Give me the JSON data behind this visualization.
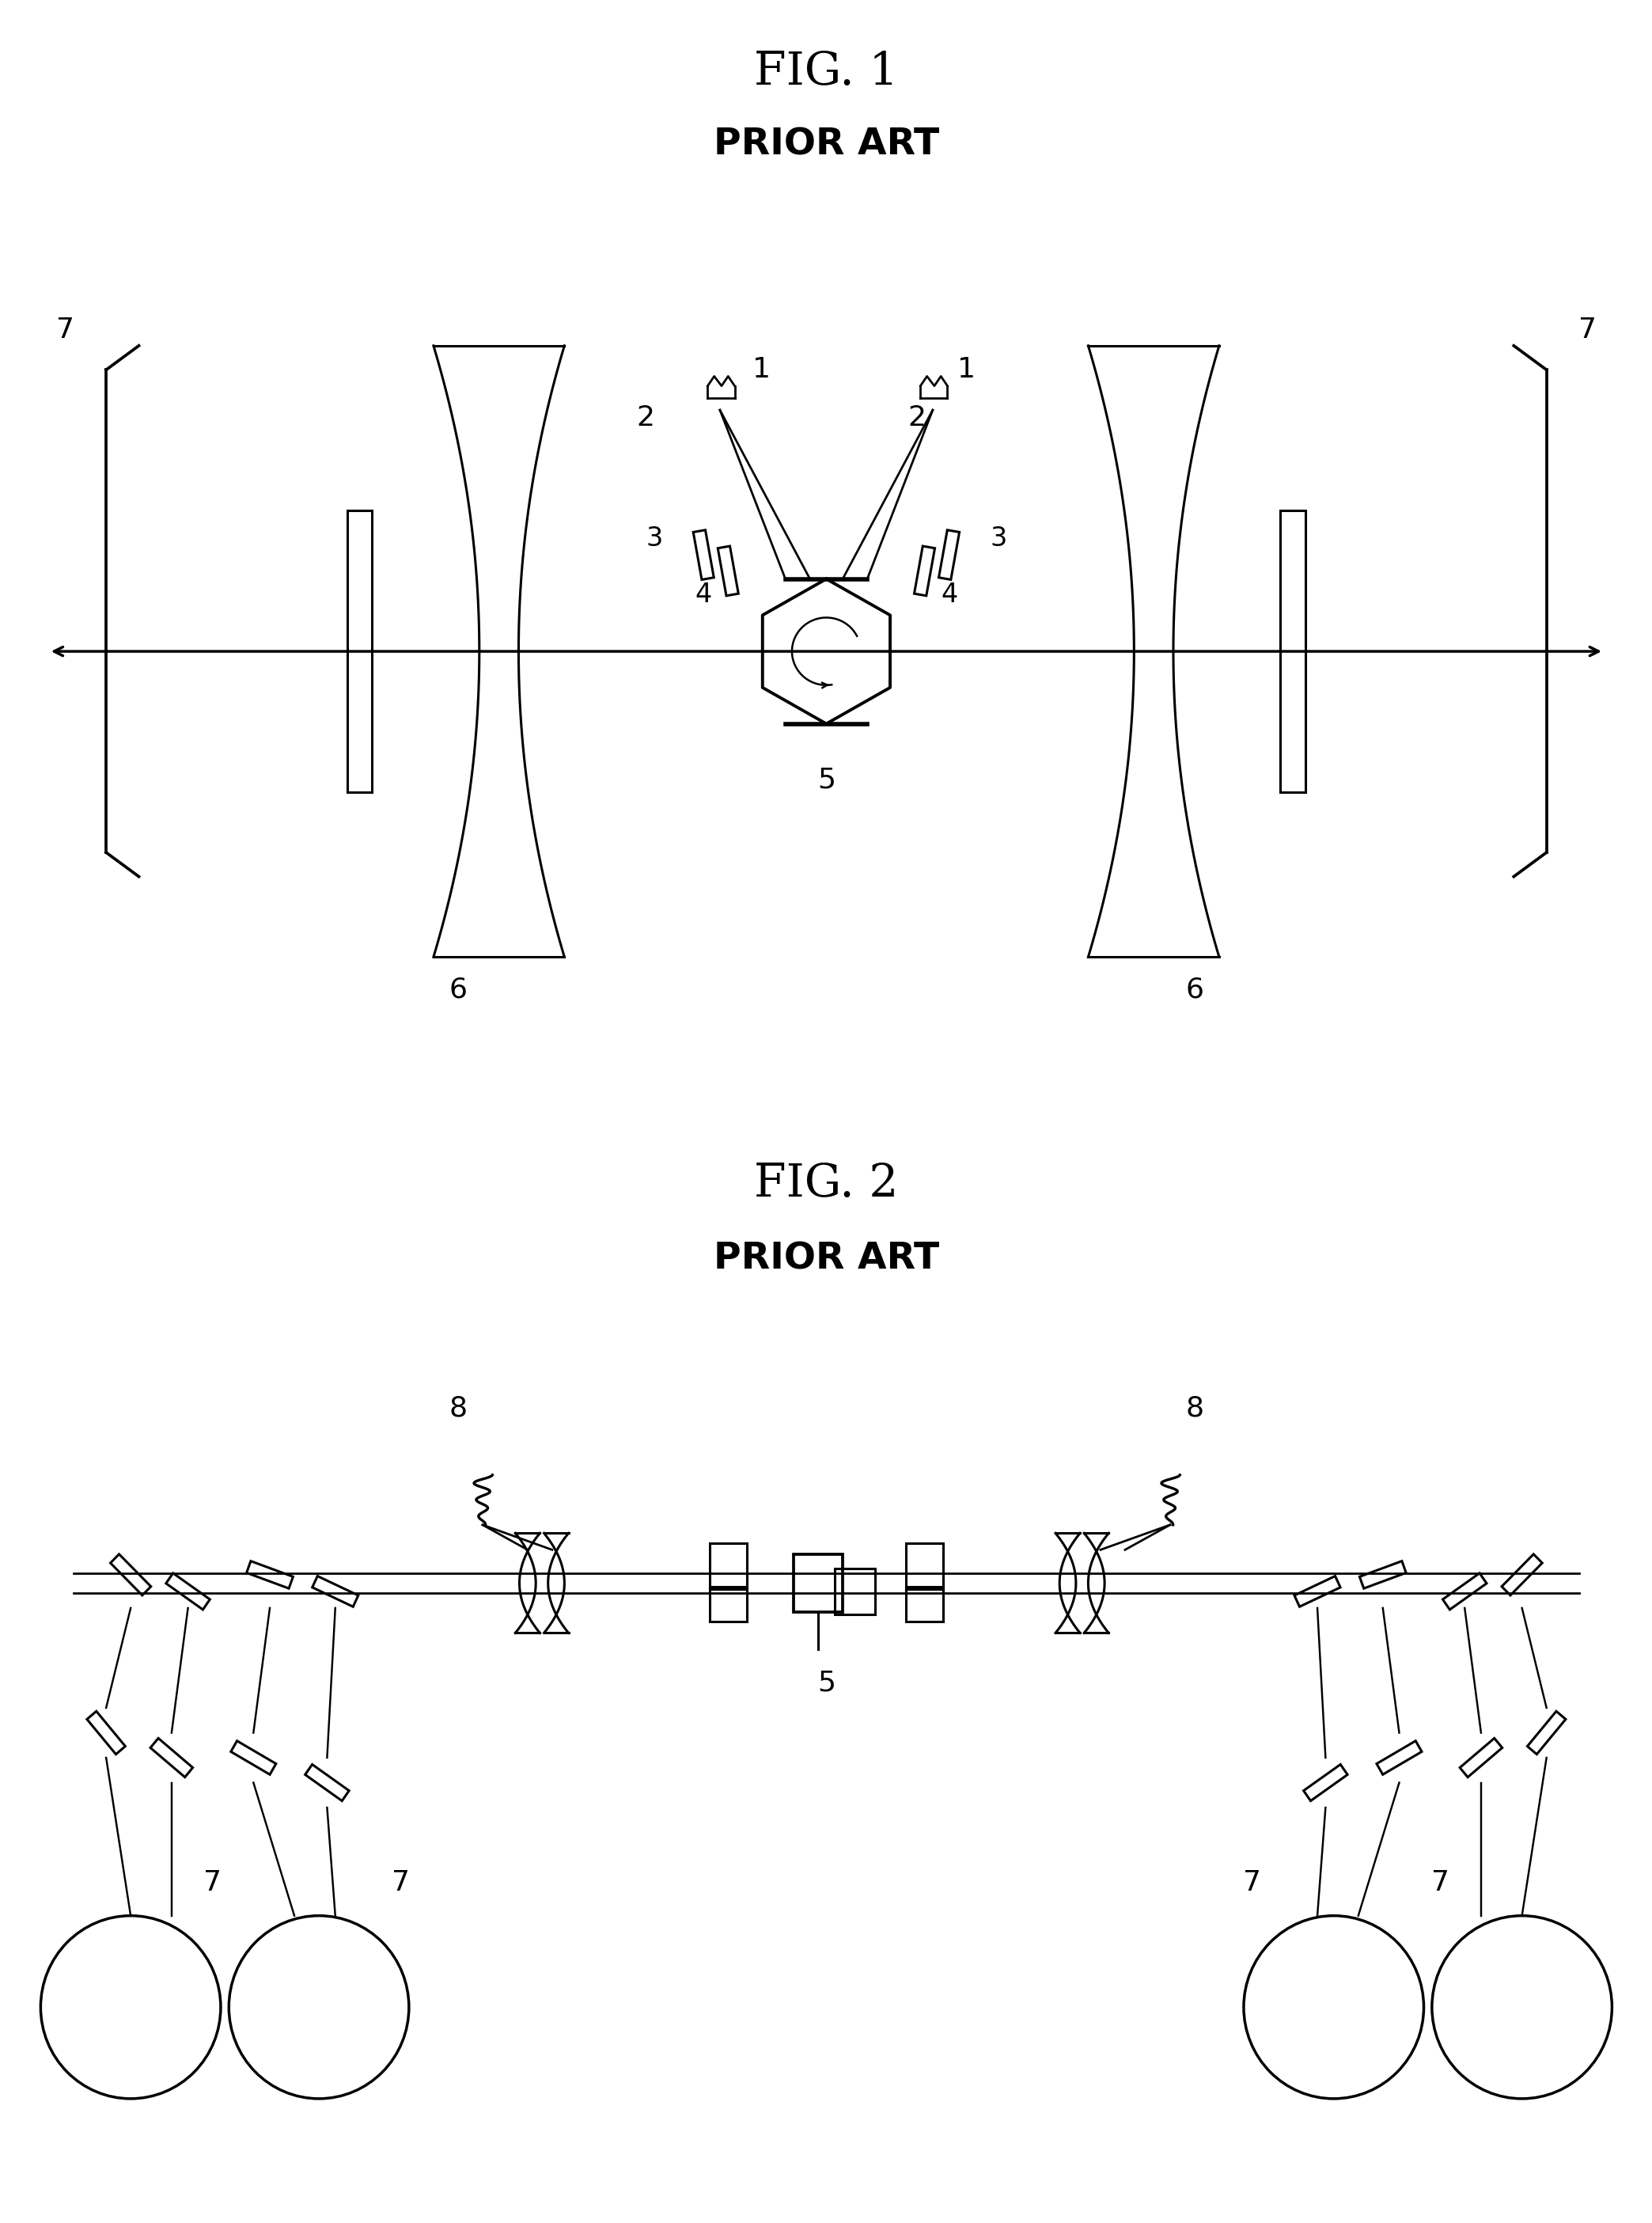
{
  "fig1_title": "FIG. 1",
  "fig1_subtitle": "PRIOR ART",
  "fig2_title": "FIG. 2",
  "fig2_subtitle": "PRIOR ART",
  "bg_color": "#ffffff",
  "line_color": "#000000",
  "title_fontsize": 42,
  "subtitle_fontsize": 34,
  "label_fontsize": 24
}
